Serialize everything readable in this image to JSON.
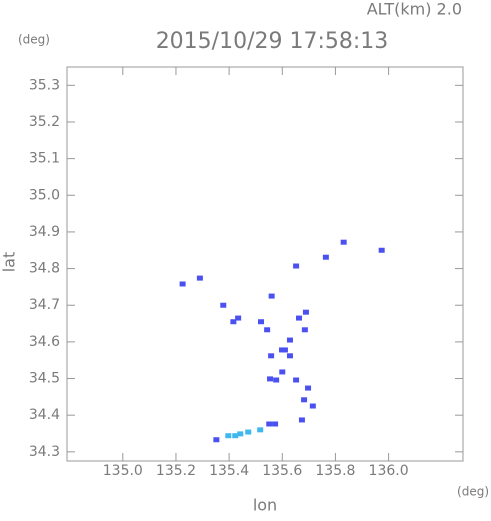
{
  "chart_data": {
    "type": "scatter",
    "title": "2015/10/29 17:58:13",
    "annotation": "ALT(km) 2.0",
    "y_unit": "(deg)",
    "x_unit": "(deg)",
    "xlabel": "lon",
    "ylabel": "lat",
    "xlim": [
      134.79,
      136.28
    ],
    "ylim": [
      34.275,
      35.35
    ],
    "xticks": [
      {
        "value": 135.0,
        "label": "135.0"
      },
      135.2,
      135.4,
      135.6,
      135.8,
      {
        "value": 136.0,
        "label": "136.0"
      }
    ],
    "yticks": [
      34.3,
      34.4,
      34.5,
      34.6,
      34.7,
      34.8,
      34.9,
      {
        "value": 35.0,
        "label": "35.0"
      },
      35.1,
      35.2,
      35.3
    ],
    "series": [
      {
        "color": "#4b50f0",
        "x": [
          135.225,
          135.29,
          135.378,
          135.434,
          135.416,
          135.52,
          135.543,
          135.56,
          135.558,
          135.61,
          135.577,
          135.554,
          135.6,
          135.685,
          135.663,
          135.689,
          135.652,
          135.764,
          135.831,
          135.974,
          135.682,
          135.697,
          135.715,
          135.674,
          135.599,
          135.551,
          135.573,
          135.352,
          135.629,
          135.652,
          135.629
        ],
        "y": [
          34.758,
          34.774,
          34.7,
          34.665,
          34.655,
          34.655,
          34.633,
          34.725,
          34.562,
          34.578,
          34.496,
          34.499,
          34.518,
          34.633,
          34.665,
          34.681,
          34.807,
          34.831,
          34.872,
          34.85,
          34.442,
          34.474,
          34.425,
          34.387,
          34.578,
          34.376,
          34.376,
          34.333,
          34.562,
          34.496,
          34.605
        ]
      },
      {
        "color": "#3fb6ee",
        "x": [
          135.517,
          135.472,
          135.442,
          135.423,
          135.397
        ],
        "y": [
          34.36,
          34.354,
          34.349,
          34.344,
          34.344
        ]
      }
    ]
  }
}
